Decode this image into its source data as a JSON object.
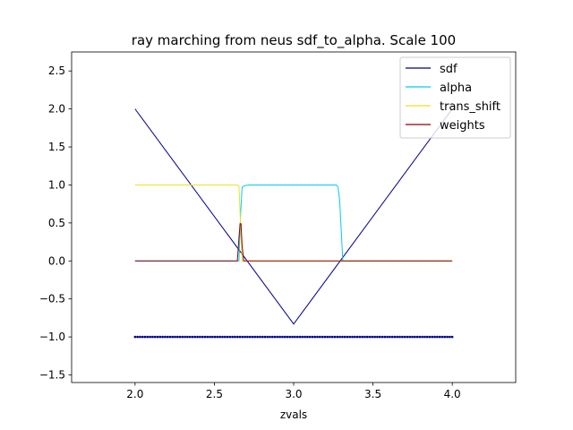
{
  "chart_data": {
    "type": "line",
    "title": "ray marching from neus sdf_to_alpha. Scale 100",
    "xlabel": "zvals",
    "ylabel": "",
    "xlim": [
      1.6,
      4.4
    ],
    "ylim": [
      -1.6,
      2.75
    ],
    "x_ticks": [
      2.0,
      2.5,
      3.0,
      3.5,
      4.0
    ],
    "x_tick_labels": [
      "2.0",
      "2.5",
      "3.0",
      "3.5",
      "4.0"
    ],
    "y_ticks": [
      -1.5,
      -1.0,
      -0.5,
      0.0,
      0.5,
      1.0,
      1.5,
      2.0,
      2.5
    ],
    "y_tick_labels": [
      "−1.5",
      "−1.0",
      "−0.5",
      "0.0",
      "0.5",
      "1.0",
      "1.5",
      "2.0",
      "2.5"
    ],
    "grid": false,
    "legend_position": "top-right",
    "series": [
      {
        "name": "sdf",
        "color": "#00008b",
        "x": [
          2.0,
          3.0,
          4.0
        ],
        "y": [
          2.0,
          -0.83,
          2.0
        ]
      },
      {
        "name": "alpha",
        "color": "#00ccee",
        "x": [
          2.0,
          2.655,
          2.66,
          2.665,
          2.675,
          2.69,
          2.72,
          3.27,
          3.28,
          3.29,
          3.31,
          4.0
        ],
        "y": [
          0.0,
          0.0,
          0.3,
          0.6,
          0.97,
          0.99,
          1.0,
          1.0,
          0.97,
          0.8,
          0.0,
          0.0
        ]
      },
      {
        "name": "trans_shift",
        "color": "#f0e020",
        "x": [
          2.0,
          2.645,
          2.655,
          2.665,
          2.675,
          4.0
        ],
        "y": [
          1.0,
          1.0,
          0.98,
          0.5,
          0.0,
          0.0
        ]
      },
      {
        "name": "weights",
        "color": "#8b0000",
        "x": [
          2.0,
          2.645,
          2.655,
          2.662,
          2.668,
          2.675,
          2.685,
          4.0
        ],
        "y": [
          0.0,
          0.0,
          0.3,
          0.49,
          0.49,
          0.2,
          0.0,
          0.0
        ]
      }
    ],
    "markers": {
      "color": "#00008b",
      "y": -1.0,
      "x_start": 2.0,
      "x_end": 4.0,
      "count": 128
    }
  }
}
